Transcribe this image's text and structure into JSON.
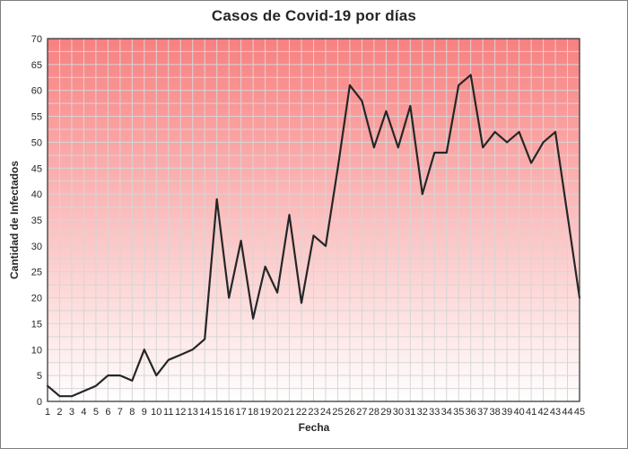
{
  "window": {
    "frame_border_color": "#7f7f7f",
    "background_color": "#ffffff"
  },
  "chart_data": {
    "type": "line",
    "title": "Casos de Covid-19 por días",
    "xlabel": "Fecha",
    "ylabel": "Cantidad de Infectados",
    "x": [
      1,
      2,
      3,
      4,
      5,
      6,
      7,
      8,
      9,
      10,
      11,
      12,
      13,
      14,
      15,
      16,
      17,
      18,
      19,
      20,
      21,
      22,
      23,
      24,
      25,
      26,
      27,
      28,
      29,
      30,
      31,
      32,
      33,
      34,
      35,
      36,
      37,
      38,
      39,
      40,
      41,
      42,
      43,
      44,
      45
    ],
    "values": [
      3,
      1,
      1,
      2,
      3,
      5,
      5,
      4,
      10,
      5,
      8,
      9,
      10,
      12,
      39,
      20,
      31,
      16,
      26,
      21,
      36,
      19,
      32,
      30,
      45,
      61,
      58,
      49,
      56,
      49,
      57,
      40,
      48,
      48,
      61,
      63,
      49,
      52,
      50,
      52,
      46,
      50,
      52,
      36,
      20
    ],
    "ylim": [
      0,
      70
    ],
    "y_tick_step": 5,
    "y_minor_grid_step": 2.5,
    "y_tick_labels": [
      "0",
      "5",
      "10",
      "15",
      "20",
      "25",
      "30",
      "35",
      "40",
      "45",
      "50",
      "55",
      "60",
      "65",
      "70"
    ],
    "grid": true,
    "legend": false,
    "styles": {
      "line_color": "#262626",
      "line_width": 2.2,
      "grid_color": "#d6d6d6",
      "plot_border_color": "#3a3a3a",
      "bg_gradient_top": "#f88080",
      "bg_gradient_bottom": "#ffffff",
      "title_color": "#262626",
      "tick_label_color": "#262626"
    }
  }
}
